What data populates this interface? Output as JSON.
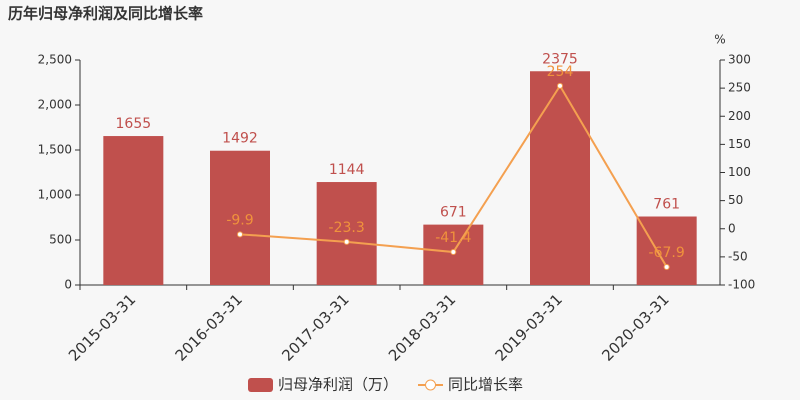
{
  "chart_data": {
    "type": "bar-line",
    "title": "历年归母净利润及同比增长率",
    "categories": [
      "2015-03-31",
      "2016-03-31",
      "2017-03-31",
      "2018-03-31",
      "2019-03-31",
      "2020-03-31"
    ],
    "series": [
      {
        "name": "归母净利润（万）",
        "type": "bar",
        "color": "#c0504d",
        "label_color": "#c0504d",
        "values": [
          1655,
          1492,
          1144,
          671,
          2375,
          761
        ]
      },
      {
        "name": "同比增长率",
        "type": "line",
        "axis": "y2",
        "color": "#f4a050",
        "label_color": "#f0923c",
        "values": [
          null,
          -9.9,
          -23.3,
          -41.4,
          254,
          -67.9
        ]
      }
    ],
    "ylim": [
      0,
      2500
    ],
    "yticks": [
      0,
      500,
      {
        "value": 1000,
        "label": "1,000"
      },
      {
        "value": 1500,
        "label": "1,500"
      },
      {
        "value": 2000,
        "label": "2,000"
      },
      {
        "value": 2500,
        "label": "2,500"
      }
    ],
    "y2lim": [
      -100,
      300
    ],
    "y2ticks": [
      -100,
      -50,
      0,
      50,
      100,
      150,
      200,
      250,
      300
    ],
    "y2_label": "%"
  }
}
